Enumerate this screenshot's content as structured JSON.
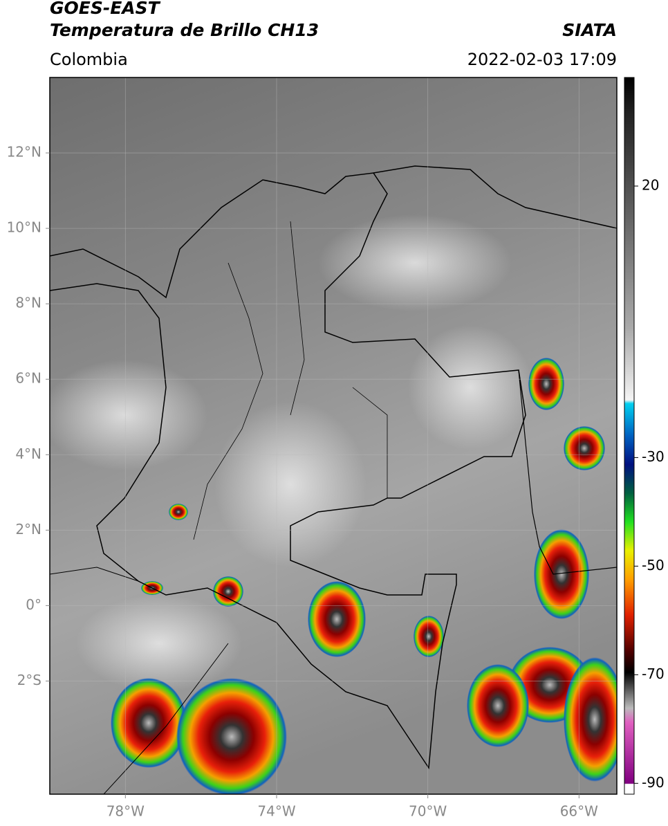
{
  "header": {
    "title": "GOES-EAST",
    "subtitle": "Temperatura de Brillo CH13",
    "source": "SIATA",
    "region": "Colombia",
    "datetime": "2022-02-03 17:09"
  },
  "map": {
    "xlim": [
      -80,
      -65
    ],
    "ylim": [
      -5,
      14
    ],
    "xticks": [
      {
        "value": -78,
        "label": "78°W"
      },
      {
        "value": -74,
        "label": "74°W"
      },
      {
        "value": -70,
        "label": "70°W"
      },
      {
        "value": -66,
        "label": "66°W"
      }
    ],
    "yticks": [
      {
        "value": 12,
        "label": "12°N"
      },
      {
        "value": 10,
        "label": "10°N"
      },
      {
        "value": 8,
        "label": "8°N"
      },
      {
        "value": 6,
        "label": "6°N"
      },
      {
        "value": 4,
        "label": "4°N"
      },
      {
        "value": 2,
        "label": "2°N"
      },
      {
        "value": 0,
        "label": "0°"
      },
      {
        "value": -2,
        "label": "2°S"
      }
    ]
  },
  "colorbar": {
    "lim": [
      -92,
      40
    ],
    "ticks": [
      20,
      -30,
      -50,
      -70,
      -90
    ]
  }
}
